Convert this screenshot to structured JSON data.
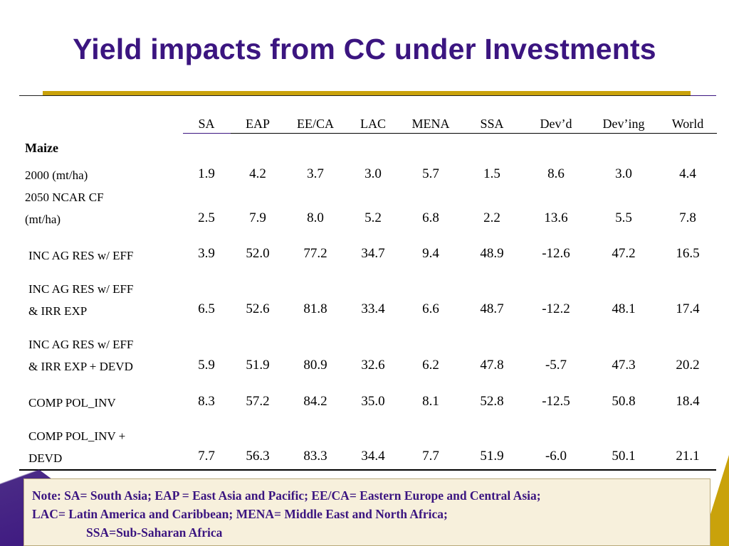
{
  "slide": {
    "title": "Yield impacts from CC under Investments"
  },
  "table": {
    "columns": [
      "SA",
      "EAP",
      "EE/CA",
      "LAC",
      "MENA",
      "SSA",
      "Dev’d",
      "Dev’ing",
      "World"
    ],
    "section_label": "Maize",
    "rows": [
      {
        "label_lines": [
          "2000 (mt/ha)"
        ],
        "values": [
          "1.9",
          "4.2",
          "3.7",
          "3.0",
          "5.7",
          "1.5",
          "8.6",
          "3.0",
          "4.4"
        ]
      },
      {
        "label_lines": [
          "2050 NCAR CF",
          "(mt/ha)"
        ],
        "values": [
          "2.5",
          "7.9",
          "8.0",
          "5.2",
          "6.8",
          "2.2",
          "13.6",
          "5.5",
          "7.8"
        ]
      },
      {
        "label_lines": [
          "INC AG RES w/ EFF"
        ],
        "values": [
          "3.9",
          "52.0",
          "77.2",
          "34.7",
          "9.4",
          "48.9",
          "-12.6",
          "47.2",
          "16.5"
        ]
      },
      {
        "label_lines": [
          "INC AG RES w/ EFF",
          "& IRR EXP"
        ],
        "values": [
          "6.5",
          "52.6",
          "81.8",
          "33.4",
          "6.6",
          "48.7",
          "-12.2",
          "48.1",
          "17.4"
        ]
      },
      {
        "label_lines": [
          "INC AG RES w/ EFF",
          "& IRR EXP + DEVD"
        ],
        "values": [
          "5.9",
          "51.9",
          "80.9",
          "32.6",
          "6.2",
          "47.8",
          "-5.7",
          "47.3",
          "20.2"
        ]
      },
      {
        "label_lines": [
          "COMP POL_INV"
        ],
        "values": [
          "8.3",
          "57.2",
          "84.2",
          "35.0",
          "8.1",
          "52.8",
          "-12.5",
          "50.8",
          "18.4"
        ]
      },
      {
        "label_lines": [
          "COMP POL_INV +",
          "DEVD"
        ],
        "values": [
          "7.7",
          "56.3",
          "83.3",
          "34.4",
          "7.7",
          "51.9",
          "-6.0",
          "50.1",
          "21.1"
        ]
      }
    ]
  },
  "note": {
    "line1": "Note: SA= South Asia; EAP = East Asia and Pacific; EE/CA= Eastern Europe and Central Asia;",
    "line2": "LAC= Latin America and Caribbean; MENA= Middle East and North Africa;",
    "line3": "SSA=Sub-Saharan Africa"
  },
  "colors": {
    "title": "#3b1580",
    "accent_gold": "#c9a20b",
    "note_background": "#f7f0dc"
  }
}
